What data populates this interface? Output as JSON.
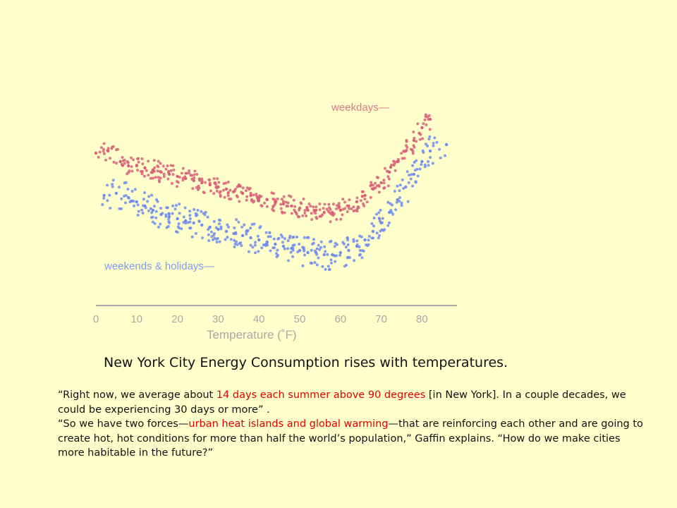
{
  "chart_data": {
    "type": "scatter",
    "xlabel": "Temperature (˚F)",
    "xlim": [
      0,
      88
    ],
    "x_ticks": [
      "0",
      "10",
      "20",
      "30",
      "40",
      "50",
      "60",
      "70",
      "80"
    ],
    "y_ticks": [],
    "colors": {
      "weekdays": "#d95f78",
      "weekends": "#6e8cf0",
      "axis": "#a8a8a8"
    },
    "series": [
      {
        "name": "weekdays",
        "points": [
          [
            0,
            72
          ],
          [
            3,
            73
          ],
          [
            6,
            68
          ],
          [
            8,
            66
          ],
          [
            10,
            66
          ],
          [
            12,
            65
          ],
          [
            14,
            64
          ],
          [
            16,
            63
          ],
          [
            18,
            62
          ],
          [
            20,
            61
          ],
          [
            22,
            60
          ],
          [
            24,
            59
          ],
          [
            26,
            58
          ],
          [
            28,
            57
          ],
          [
            30,
            56
          ],
          [
            32,
            55
          ],
          [
            34,
            54
          ],
          [
            36,
            53
          ],
          [
            38,
            52
          ],
          [
            40,
            51
          ],
          [
            42,
            50
          ],
          [
            44,
            49
          ],
          [
            46,
            48
          ],
          [
            48,
            47
          ],
          [
            50,
            46
          ],
          [
            52,
            45
          ],
          [
            54,
            45
          ],
          [
            56,
            44
          ],
          [
            58,
            44
          ],
          [
            60,
            45
          ],
          [
            62,
            47
          ],
          [
            64,
            49
          ],
          [
            66,
            52
          ],
          [
            68,
            55
          ],
          [
            70,
            58
          ],
          [
            72,
            63
          ],
          [
            74,
            68
          ],
          [
            76,
            73
          ],
          [
            78,
            78
          ],
          [
            80,
            84
          ],
          [
            82,
            88
          ]
        ]
      },
      {
        "name": "weekends & holidays",
        "points": [
          [
            2,
            52
          ],
          [
            5,
            53
          ],
          [
            8,
            51
          ],
          [
            10,
            49
          ],
          [
            12,
            47
          ],
          [
            14,
            45
          ],
          [
            16,
            43
          ],
          [
            18,
            42
          ],
          [
            20,
            41
          ],
          [
            22,
            40
          ],
          [
            24,
            39
          ],
          [
            26,
            38
          ],
          [
            28,
            37
          ],
          [
            30,
            36
          ],
          [
            32,
            35
          ],
          [
            34,
            34
          ],
          [
            36,
            33
          ],
          [
            38,
            32
          ],
          [
            40,
            31
          ],
          [
            42,
            30
          ],
          [
            44,
            29
          ],
          [
            46,
            28
          ],
          [
            48,
            27
          ],
          [
            50,
            26
          ],
          [
            52,
            25
          ],
          [
            54,
            25
          ],
          [
            56,
            24
          ],
          [
            58,
            24
          ],
          [
            60,
            25
          ],
          [
            62,
            26
          ],
          [
            64,
            28
          ],
          [
            66,
            31
          ],
          [
            68,
            35
          ],
          [
            70,
            39
          ],
          [
            72,
            44
          ],
          [
            74,
            50
          ],
          [
            76,
            56
          ],
          [
            78,
            62
          ],
          [
            80,
            68
          ],
          [
            82,
            73
          ],
          [
            86,
            76
          ]
        ]
      }
    ],
    "annotations": [
      "weekdays—",
      "weekends & holidays—"
    ]
  },
  "caption": "New York City Energy Consumption rises with temperatures.",
  "quote": {
    "p1_a": "“Right now, we average about ",
    "p1_red": "14 days each summer above 90 degrees",
    "p1_b": " [in New York]. In a couple decades, we could be experiencing 30 days or more” .",
    "p2_a": "“So we have two forces—",
    "p2_red": "urban heat islands and global warming",
    "p2_b": "—that are reinforcing each other and are going to create hot, hot conditions for more than half the world’s population,” Gaffin explains. “How do we make cities more habitable in the future?”"
  }
}
